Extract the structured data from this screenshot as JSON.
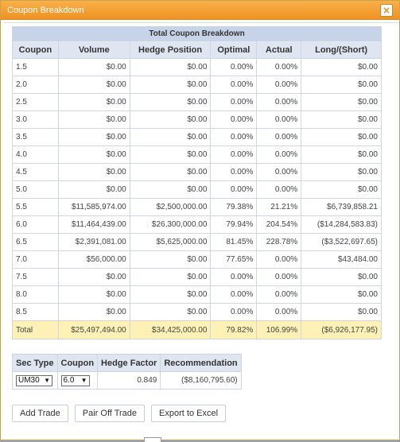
{
  "window": {
    "title": "Coupon Breakdown",
    "close_icon": "×"
  },
  "breakdown": {
    "caption": "Total Coupon Breakdown",
    "columns": [
      "Coupon",
      "Volume",
      "Hedge Position",
      "Optimal",
      "Actual",
      "Long/(Short)"
    ],
    "rows": [
      [
        "1.5",
        "$0.00",
        "$0.00",
        "0.00%",
        "0.00%",
        "$0.00"
      ],
      [
        "2.0",
        "$0.00",
        "$0.00",
        "0.00%",
        "0.00%",
        "$0.00"
      ],
      [
        "2.5",
        "$0.00",
        "$0.00",
        "0.00%",
        "0.00%",
        "$0.00"
      ],
      [
        "3.0",
        "$0.00",
        "$0.00",
        "0.00%",
        "0.00%",
        "$0.00"
      ],
      [
        "3.5",
        "$0.00",
        "$0.00",
        "0.00%",
        "0.00%",
        "$0.00"
      ],
      [
        "4.0",
        "$0.00",
        "$0.00",
        "0.00%",
        "0.00%",
        "$0.00"
      ],
      [
        "4.5",
        "$0.00",
        "$0.00",
        "0.00%",
        "0.00%",
        "$0.00"
      ],
      [
        "5.0",
        "$0.00",
        "$0.00",
        "0.00%",
        "0.00%",
        "$0.00"
      ],
      [
        "5.5",
        "$11,585,974.00",
        "$2,500,000.00",
        "79.38%",
        "21.21%",
        "$6,739,858.21"
      ],
      [
        "6.0",
        "$11,464,439.00",
        "$26,300,000.00",
        "79.94%",
        "204.54%",
        "($14,284,583.83)"
      ],
      [
        "6.5",
        "$2,391,081.00",
        "$5,625,000.00",
        "81.45%",
        "228.78%",
        "($3,522,697.65)"
      ],
      [
        "7.0",
        "$56,000.00",
        "$0.00",
        "77.65%",
        "0.00%",
        "$43,484.00"
      ],
      [
        "7.5",
        "$0.00",
        "$0.00",
        "0.00%",
        "0.00%",
        "$0.00"
      ],
      [
        "8.0",
        "$0.00",
        "$0.00",
        "0.00%",
        "0.00%",
        "$0.00"
      ],
      [
        "8.5",
        "$0.00",
        "$0.00",
        "0.00%",
        "0.00%",
        "$0.00"
      ]
    ],
    "total": [
      "Total",
      "$25,497,494.00",
      "$34,425,000.00",
      "79.82%",
      "106.99%",
      "($6,926,177.95)"
    ]
  },
  "sec_table": {
    "columns": [
      "Sec Type",
      "Coupon",
      "Hedge Factor",
      "Recommendation"
    ],
    "sec_type_value": "UM30",
    "coupon_value": "6.0",
    "hedge_factor": "0.849",
    "recommendation": "($8,160,795.60)"
  },
  "buttons": {
    "add_trade": "Add Trade",
    "pair_off_trade": "Pair Off Trade",
    "export_excel": "Export to Excel"
  },
  "icons": {
    "close": "close-icon",
    "dropdown": "chevron-down-icon"
  },
  "colors": {
    "titlebar": "#f39a2b",
    "header_bg": "#dfe6f2",
    "total_bg": "#fdf1b5"
  }
}
